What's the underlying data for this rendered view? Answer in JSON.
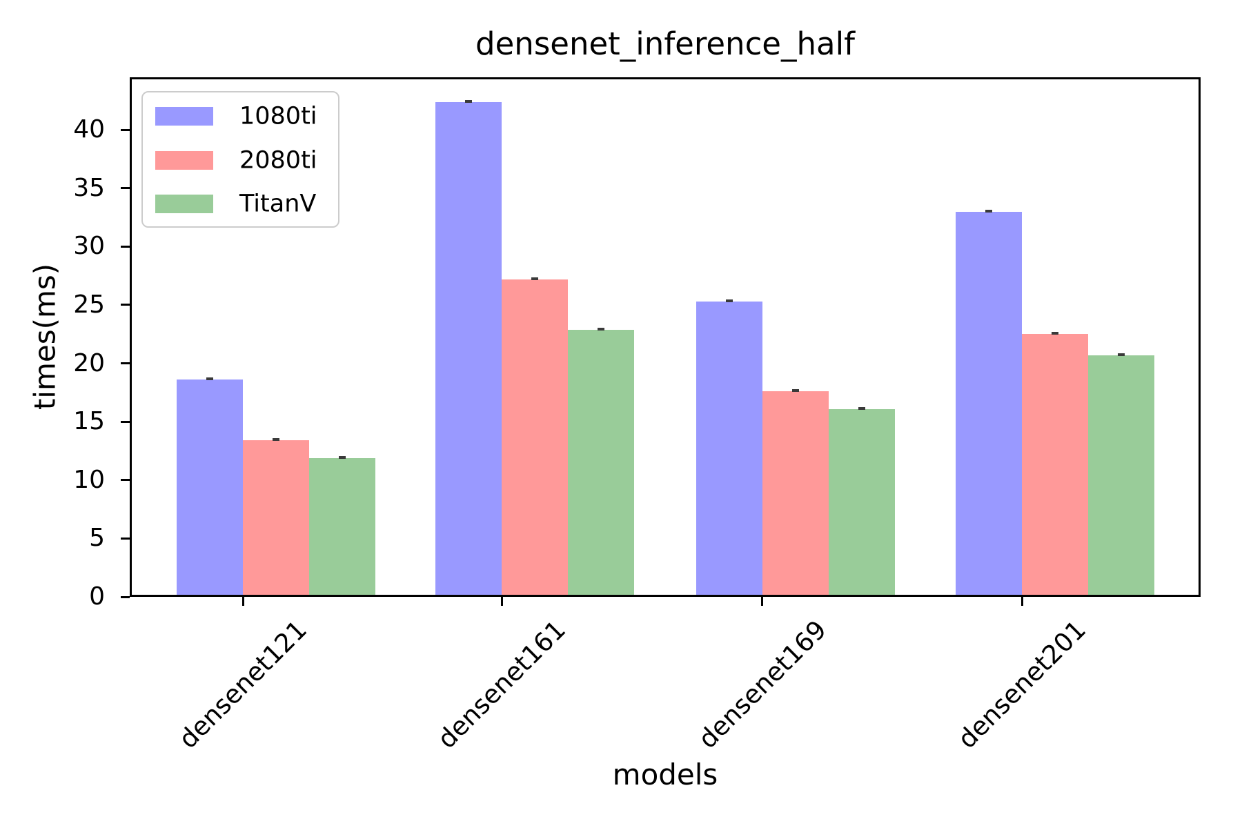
{
  "title": "densenet_inference_half",
  "chart_data": {
    "type": "bar",
    "title": "densenet_inference_half",
    "xlabel": "models",
    "ylabel": "times(ms)",
    "categories": [
      "densenet121",
      "densenet161",
      "densenet169",
      "densenet201"
    ],
    "series": [
      {
        "name": "1080ti",
        "color": "#9999ff",
        "values": [
          18.6,
          42.4,
          25.3,
          33.0
        ]
      },
      {
        "name": "2080ti",
        "color": "#ff9999",
        "values": [
          13.4,
          27.2,
          17.6,
          22.5
        ]
      },
      {
        "name": "TitanV",
        "color": "#99cc99",
        "values": [
          11.9,
          22.9,
          16.1,
          20.7
        ]
      }
    ],
    "ylim": [
      0,
      44.5
    ],
    "yticks": [
      0,
      5,
      10,
      15,
      20,
      25,
      30,
      35,
      40
    ],
    "legend_position": "upper left",
    "grid": false,
    "has_error_caps": true,
    "error_cap_color": "#3a3a3a",
    "bar_edge": "none"
  }
}
